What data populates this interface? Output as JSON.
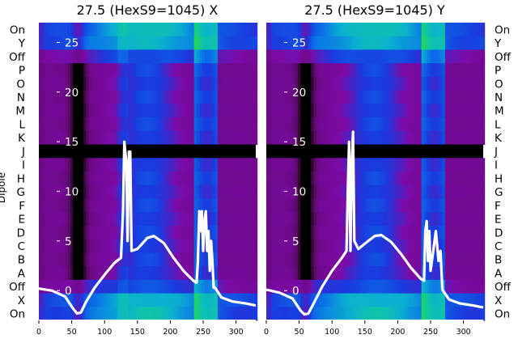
{
  "chart_data": {
    "type": "heatmap",
    "xlim": [
      0,
      330
    ],
    "x_ticks": [
      "0",
      "50",
      "100",
      "150",
      "200",
      "250",
      "300"
    ],
    "x_tick_values": [
      0,
      50,
      100,
      150,
      200,
      250,
      300
    ],
    "overlay_ylim": [
      -3,
      27
    ],
    "overlay_ticks": [
      "0",
      "5",
      "10",
      "15",
      "20",
      "25"
    ],
    "overlay_tick_values": [
      0,
      5,
      10,
      15,
      20,
      25
    ],
    "ylabel": "Dipole",
    "row_labels": [
      "On",
      "Y",
      "Off",
      "P",
      "O",
      "N",
      "M",
      "L",
      "K",
      "J",
      "I",
      "H",
      "G",
      "F",
      "E",
      "D",
      "C",
      "B",
      "A",
      "Off",
      "X",
      "On"
    ],
    "masked_rows": [
      "J"
    ],
    "highlight_line_y": -3.0,
    "colormap": [
      "#000000",
      "#3a0a3a",
      "#5a0a6a",
      "#6f0a8c",
      "#7c0aa8",
      "#1a3adf",
      "#0a70e8",
      "#0ab0d0",
      "#10c8a0",
      "#2ae02a"
    ],
    "panels": [
      {
        "title": "27.5 (HexS9=1045) X",
        "overlay": [
          [
            0,
            0.2
          ],
          [
            20,
            0
          ],
          [
            40,
            -0.6
          ],
          [
            52,
            -1.8
          ],
          [
            58,
            -2.3
          ],
          [
            64,
            -2.2
          ],
          [
            72,
            -1.1
          ],
          [
            85,
            0.3
          ],
          [
            100,
            1.6
          ],
          [
            115,
            2.8
          ],
          [
            125,
            3.3
          ],
          [
            128,
            8
          ],
          [
            130,
            15
          ],
          [
            133,
            13
          ],
          [
            135,
            5
          ],
          [
            137,
            14
          ],
          [
            139,
            14
          ],
          [
            141,
            4
          ],
          [
            150,
            4.2
          ],
          [
            165,
            5.3
          ],
          [
            175,
            5.5
          ],
          [
            190,
            4.8
          ],
          [
            205,
            3.3
          ],
          [
            220,
            2.0
          ],
          [
            235,
            1.0
          ],
          [
            240,
            0.8
          ],
          [
            242,
            3
          ],
          [
            244,
            8
          ],
          [
            246,
            6
          ],
          [
            248,
            8
          ],
          [
            250,
            4
          ],
          [
            252,
            7
          ],
          [
            254,
            8
          ],
          [
            256,
            4
          ],
          [
            258,
            6
          ],
          [
            260,
            2
          ],
          [
            262,
            5
          ],
          [
            264,
            3
          ],
          [
            266,
            0.3
          ],
          [
            268,
            0.3
          ],
          [
            278,
            -0.7
          ],
          [
            295,
            -1.1
          ],
          [
            315,
            -1.3
          ],
          [
            330,
            -1.5
          ]
        ]
      },
      {
        "title": "27.5 (HexS9=1045) Y",
        "overlay": [
          [
            0,
            0.1
          ],
          [
            20,
            -0.2
          ],
          [
            40,
            -0.8
          ],
          [
            52,
            -2.0
          ],
          [
            58,
            -2.4
          ],
          [
            64,
            -2.3
          ],
          [
            72,
            -1.3
          ],
          [
            85,
            0.4
          ],
          [
            100,
            2.0
          ],
          [
            115,
            3.3
          ],
          [
            122,
            4.0
          ],
          [
            124,
            10
          ],
          [
            126,
            15
          ],
          [
            128,
            4
          ],
          [
            130,
            13
          ],
          [
            132,
            16
          ],
          [
            134,
            5
          ],
          [
            140,
            4.2
          ],
          [
            155,
            5.0
          ],
          [
            165,
            5.5
          ],
          [
            175,
            5.6
          ],
          [
            190,
            4.9
          ],
          [
            205,
            3.7
          ],
          [
            220,
            2.3
          ],
          [
            235,
            1.2
          ],
          [
            240,
            1.0
          ],
          [
            242,
            6
          ],
          [
            244,
            7
          ],
          [
            246,
            3
          ],
          [
            248,
            6
          ],
          [
            250,
            2
          ],
          [
            254,
            4
          ],
          [
            258,
            6
          ],
          [
            262,
            3
          ],
          [
            265,
            4
          ],
          [
            268,
            0.1
          ],
          [
            278,
            -0.9
          ],
          [
            295,
            -1.3
          ],
          [
            315,
            -1.5
          ],
          [
            330,
            -1.7
          ]
        ]
      }
    ]
  }
}
